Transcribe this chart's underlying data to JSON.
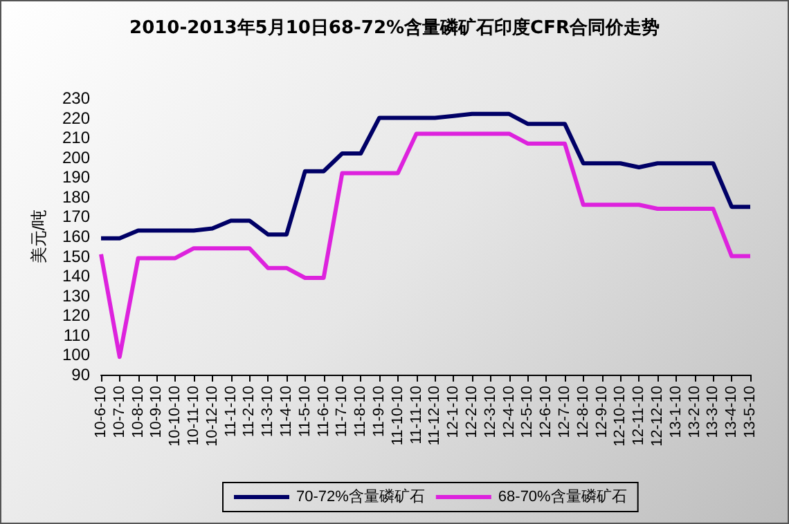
{
  "chart_data": {
    "type": "line",
    "title": "2010-2013年5月10日68-72%含量磷矿石印度CFR合同价走势",
    "ylabel": "美元/吨",
    "categories": [
      "10-6-10",
      "10-7-10",
      "10-8-10",
      "10-9-10",
      "10-10-10",
      "10-11-10",
      "10-12-10",
      "11-1-10",
      "11-2-10",
      "11-3-10",
      "11-4-10",
      "11-5-10",
      "11-6-10",
      "11-7-10",
      "11-8-10",
      "11-9-10",
      "11-10-10",
      "11-11-10",
      "11-12-10",
      "12-1-10",
      "12-2-10",
      "12-3-10",
      "12-4-10",
      "12-5-10",
      "12-6-10",
      "12-7-10",
      "12-8-10",
      "12-9-10",
      "12-10-10",
      "12-11-10",
      "12-12-10",
      "13-1-10",
      "13-2-10",
      "13-3-10",
      "13-4-10",
      "13-5-10"
    ],
    "series": [
      {
        "name": "70-72%含量磷矿石",
        "color": "#000066",
        "values": [
          159,
          159,
          163,
          163,
          163,
          163,
          164,
          168,
          168,
          161,
          161,
          193,
          193,
          202,
          202,
          220,
          220,
          220,
          220,
          221,
          222,
          222,
          222,
          217,
          217,
          217,
          197,
          197,
          197,
          195,
          197,
          197,
          197,
          197,
          175,
          175
        ]
      },
      {
        "name": "68-70%含量磷矿石",
        "color": "#dd22dd",
        "values": [
          151,
          99,
          149,
          149,
          149,
          154,
          154,
          154,
          154,
          144,
          144,
          139,
          139,
          192,
          192,
          192,
          192,
          212,
          212,
          212,
          212,
          212,
          212,
          207,
          207,
          207,
          176,
          176,
          176,
          176,
          174,
          174,
          174,
          174,
          150,
          150
        ]
      }
    ],
    "ylim": [
      90,
      230
    ],
    "yticks": [
      90,
      100,
      110,
      120,
      130,
      140,
      150,
      160,
      170,
      180,
      190,
      200,
      210,
      220,
      230
    ],
    "grid": false,
    "legend": "bottom",
    "marker": "none",
    "line_style": "solid"
  }
}
